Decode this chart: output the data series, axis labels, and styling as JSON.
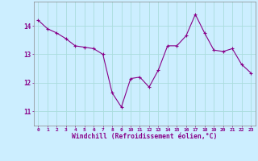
{
  "x": [
    0,
    1,
    2,
    3,
    4,
    5,
    6,
    7,
    8,
    9,
    10,
    11,
    12,
    13,
    14,
    15,
    16,
    17,
    18,
    19,
    20,
    21,
    22,
    23
  ],
  "y": [
    14.2,
    13.9,
    13.75,
    13.55,
    13.3,
    13.25,
    13.2,
    13.0,
    11.65,
    11.15,
    12.15,
    12.2,
    11.85,
    12.45,
    13.3,
    13.3,
    13.65,
    14.4,
    13.75,
    13.15,
    13.1,
    13.2,
    12.65,
    12.35
  ],
  "line_color": "#880088",
  "marker": "+",
  "marker_size": 3,
  "marker_linewidth": 0.8,
  "line_width": 0.8,
  "bg_color": "#cceeff",
  "grid_color": "#aadddd",
  "xlabel": "Windchill (Refroidissement éolien,°C)",
  "xlabel_color": "#880088",
  "tick_color": "#880088",
  "ylim": [
    10.5,
    14.85
  ],
  "xlim": [
    -0.5,
    23.5
  ],
  "yticks": [
    11,
    12,
    13,
    14
  ],
  "xticks": [
    0,
    1,
    2,
    3,
    4,
    5,
    6,
    7,
    8,
    9,
    10,
    11,
    12,
    13,
    14,
    15,
    16,
    17,
    18,
    19,
    20,
    21,
    22,
    23
  ],
  "spine_color": "#888888",
  "xtick_fontsize": 4.5,
  "ytick_fontsize": 5.5,
  "xlabel_fontsize": 5.8
}
